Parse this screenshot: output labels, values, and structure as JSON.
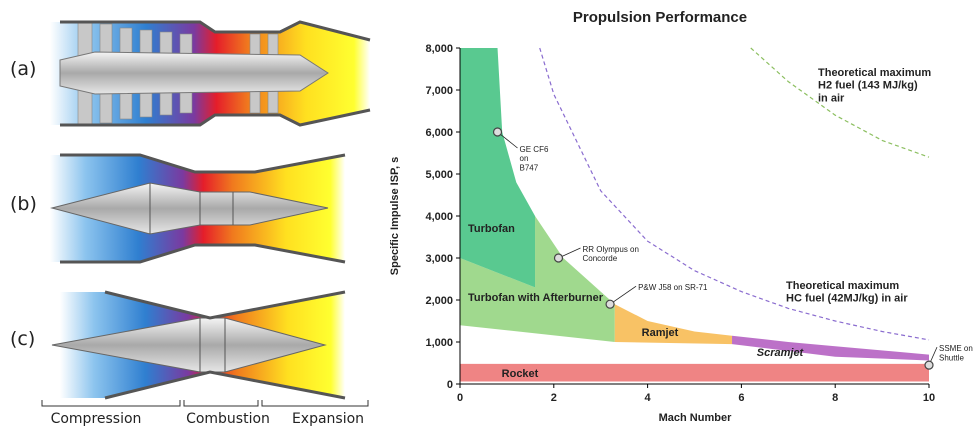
{
  "diagram": {
    "labels": [
      "(a)",
      "(b)",
      "(c)"
    ],
    "stages": [
      "Compression",
      "Combustion",
      "Expansion"
    ]
  },
  "chart_data": {
    "type": "region",
    "title": "Propulsion Performance",
    "x_label": "Mach Number",
    "y_label": "Specific Impulse ISP, s",
    "xlim": [
      0,
      10
    ],
    "ylim": [
      0,
      8000
    ],
    "xticks": [
      0,
      2,
      4,
      6,
      8,
      10
    ],
    "yticks": [
      0,
      {
        "value": 1000,
        "label": "1,000"
      },
      {
        "value": 2000,
        "label": "2,000"
      },
      {
        "value": 3000,
        "label": "3,000"
      },
      {
        "value": 4000,
        "label": "4,000"
      },
      {
        "value": 5000,
        "label": "5,000"
      },
      {
        "value": 6000,
        "label": "6,000"
      },
      {
        "value": 7000,
        "label": "7,000"
      },
      {
        "value": 8000,
        "label": "8,000"
      }
    ],
    "series": [
      {
        "name": "Rocket",
        "style": "region",
        "color": "#ec6f6f",
        "x": [
          0,
          10,
          10,
          0
        ],
        "values": [
          60,
          60,
          480,
          480
        ]
      },
      {
        "name": "Turbofan with Afterburner",
        "style": "region",
        "color": "#8fd27a",
        "x": [
          0,
          1.6,
          1.6,
          2.2,
          3.3,
          3.3,
          0
        ],
        "values": [
          3000,
          2300,
          4000,
          3000,
          1900,
          1000,
          1400
        ]
      },
      {
        "name": "Turbofan",
        "style": "region",
        "color": "#3cbf7c",
        "x": [
          0,
          0.8,
          0.9,
          1.2,
          1.6,
          1.6,
          0
        ],
        "values": [
          8000,
          8000,
          6000,
          4800,
          4000,
          2300,
          3000
        ]
      },
      {
        "name": "Ramjet",
        "style": "region",
        "color": "#f7b74a",
        "x": [
          3.3,
          4,
          5,
          5.8,
          5.8,
          3.3
        ],
        "values": [
          1900,
          1500,
          1250,
          1150,
          950,
          1000
        ]
      },
      {
        "name": "Scramjet",
        "style": "region",
        "color": "#b058be",
        "x": [
          5.8,
          7,
          8,
          10,
          10,
          8,
          5.8
        ],
        "values": [
          1150,
          1000,
          900,
          700,
          560,
          650,
          950
        ]
      },
      {
        "name": "Theoretical maximum\nHC fuel (42MJ/kg) in air",
        "style": "dashed",
        "color": "#8a6ccf",
        "x": [
          1.7,
          2,
          3,
          4,
          5,
          6,
          7,
          8,
          9,
          10
        ],
        "values": [
          8000,
          6900,
          4600,
          3400,
          2700,
          2200,
          1800,
          1500,
          1250,
          1050
        ]
      },
      {
        "name": "Theoretical maximum\nH2 fuel (143 MJ/kg)\nin air",
        "style": "dashed",
        "color": "#8cbf60",
        "x": [
          6.2,
          7,
          8,
          9,
          10
        ],
        "values": [
          8000,
          7200,
          6400,
          5800,
          5400
        ]
      }
    ],
    "annotations": [
      {
        "text": "GE CF6\non\nB747",
        "x": 0.8,
        "y": 6000
      },
      {
        "text": "RR Olympus on\nConcorde",
        "x": 2.1,
        "y": 3000
      },
      {
        "text": "P&W J58 on SR-71",
        "x": 3.2,
        "y": 1900
      },
      {
        "text": "SSME on\nShuttle",
        "x": 10,
        "y": 450
      }
    ]
  }
}
